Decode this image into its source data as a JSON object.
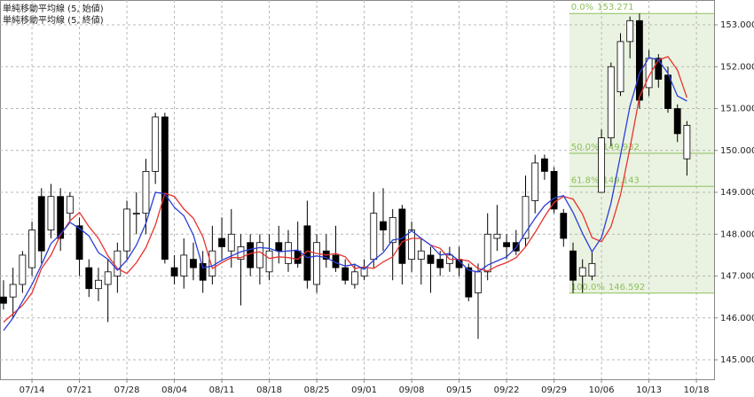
{
  "chart_data": {
    "type": "candlestick",
    "legend": [
      {
        "text": "単純移動平均線 (5, 始値)",
        "color": "#e8322d"
      },
      {
        "text": "単純移動平均線 (5, 終値)",
        "color": "#2b3fd6"
      }
    ],
    "xlim": [
      -0.37,
      74.86
    ],
    "xticks": [
      {
        "value": 3,
        "label": "07/14"
      },
      {
        "value": 8,
        "label": "07/21"
      },
      {
        "value": 13,
        "label": "07/28"
      },
      {
        "value": 18,
        "label": "08/04"
      },
      {
        "value": 23,
        "label": "08/11"
      },
      {
        "value": 28,
        "label": "08/18"
      },
      {
        "value": 33,
        "label": "08/25"
      },
      {
        "value": 38,
        "label": "09/01"
      },
      {
        "value": 43,
        "label": "09/08"
      },
      {
        "value": 48,
        "label": "09/15"
      },
      {
        "value": 53,
        "label": "09/22"
      },
      {
        "value": 58,
        "label": "09/29"
      },
      {
        "value": 63,
        "label": "10/06"
      },
      {
        "value": 68,
        "label": "10/13"
      },
      {
        "value": 73,
        "label": "10/18"
      }
    ],
    "ylim": [
      144.535,
      153.593
    ],
    "yticks": [
      {
        "value": 145,
        "label": "145.000"
      },
      {
        "value": 146,
        "label": "146.000"
      },
      {
        "value": 147,
        "label": "147.000"
      },
      {
        "value": 148,
        "label": "148.000"
      },
      {
        "value": 149,
        "label": "149.000"
      },
      {
        "value": 150,
        "label": "150.000"
      },
      {
        "value": 151,
        "label": "151.000"
      },
      {
        "value": 152,
        "label": "152.000"
      },
      {
        "value": 153,
        "label": "153.000"
      }
    ],
    "grid": true,
    "up_color": "#ffffff",
    "down_color": "#000000",
    "open": [
      146.5,
      146.5,
      146.8,
      147.2,
      148.9,
      148.1,
      148.9,
      148.5,
      148.2,
      147.2,
      146.7,
      146.8,
      147.0,
      147.6,
      148.5,
      148.5,
      149.5,
      150.8,
      147.2,
      147.0,
      147.4,
      147.3,
      147.0,
      147.9,
      147.6,
      147.4,
      147.8,
      147.2,
      147.1,
      147.8,
      147.3,
      147.6,
      148.2,
      146.8,
      147.6,
      147.5,
      147.2,
      146.8,
      147.0,
      147.4,
      148.3,
      147.8,
      148.6,
      147.4,
      147.4,
      147.5,
      147.4,
      147.3,
      147.4,
      147.2,
      146.6,
      147.1,
      147.9,
      147.8,
      147.8,
      147.9,
      148.8,
      149.8,
      149.5,
      148.5,
      147.6,
      147.0,
      147.0,
      149.0,
      150.3,
      151.4,
      152.6,
      153.1,
      151.5,
      152.2,
      151.8,
      151.0,
      149.8
    ],
    "high": [
      146.9,
      147.2,
      147.6,
      148.3,
      149.1,
      149.2,
      149.1,
      149.0,
      148.4,
      147.4,
      147.2,
      147.4,
      147.8,
      148.8,
      149.0,
      149.8,
      150.9,
      150.9,
      147.5,
      147.9,
      147.8,
      147.6,
      148.2,
      148.4,
      148.6,
      148.0,
      148.0,
      148.0,
      148.0,
      148.2,
      148.1,
      148.3,
      148.8,
      148.0,
      148.0,
      148.2,
      147.4,
      147.3,
      147.4,
      149.0,
      149.1,
      148.6,
      148.7,
      148.3,
      147.9,
      147.7,
      147.6,
      147.7,
      147.7,
      147.3,
      147.3,
      148.5,
      148.7,
      148.0,
      148.1,
      149.4,
      149.9,
      149.9,
      149.6,
      148.6,
      147.8,
      147.4,
      147.6,
      150.5,
      152.1,
      152.8,
      153.2,
      153.271,
      152.4,
      152.3,
      152.0,
      151.1,
      150.7
    ],
    "low": [
      146.2,
      146.0,
      146.6,
      147.0,
      147.3,
      147.9,
      147.6,
      148.3,
      147.0,
      146.5,
      146.4,
      145.9,
      146.6,
      147.4,
      148.0,
      148.0,
      149.2,
      147.3,
      146.8,
      146.7,
      146.9,
      146.6,
      146.8,
      147.4,
      147.2,
      146.3,
      147.0,
      146.8,
      146.9,
      147.3,
      147.1,
      147.2,
      146.7,
      146.6,
      147.2,
      147.1,
      146.8,
      146.7,
      146.9,
      147.2,
      147.6,
      146.9,
      146.8,
      147.1,
      146.8,
      146.6,
      147.0,
      147.1,
      147.0,
      146.4,
      145.5,
      146.9,
      147.6,
      147.4,
      147.5,
      147.7,
      148.5,
      149.3,
      148.5,
      147.7,
      146.592,
      146.6,
      146.9,
      149.0,
      150.1,
      151.3,
      152.2,
      151.0,
      151.3,
      151.5,
      150.9,
      150.2,
      149.4
    ],
    "close": [
      146.35,
      146.8,
      147.5,
      148.1,
      147.6,
      148.9,
      147.9,
      148.9,
      147.4,
      146.7,
      146.9,
      147.1,
      147.6,
      148.6,
      148.5,
      149.5,
      150.8,
      147.4,
      147.0,
      147.5,
      147.2,
      146.9,
      147.6,
      147.7,
      148.0,
      147.7,
      147.2,
      147.8,
      147.6,
      147.6,
      147.8,
      147.3,
      146.9,
      147.8,
      147.4,
      147.2,
      146.9,
      147.1,
      147.2,
      148.5,
      148.1,
      148.4,
      147.3,
      148.1,
      147.6,
      147.3,
      147.2,
      147.5,
      147.2,
      146.5,
      147.1,
      148.0,
      148.0,
      147.7,
      147.6,
      148.9,
      149.7,
      149.5,
      148.6,
      147.9,
      146.9,
      147.2,
      147.3,
      150.3,
      152.0,
      152.6,
      153.1,
      151.2,
      152.2,
      151.7,
      151.0,
      150.4,
      150.6
    ],
    "series": [
      {
        "name": "単純移動平均線 (5, 始値)",
        "color": "#e8322d",
        "values": [
          145.9,
          146.1,
          146.3,
          146.6,
          147.18,
          147.5,
          147.98,
          148.32,
          148.52,
          148.18,
          147.9,
          147.48,
          147.18,
          147.06,
          147.32,
          147.68,
          148.22,
          148.98,
          148.9,
          148.6,
          148.38,
          147.94,
          147.18,
          147.32,
          147.44,
          147.44,
          147.54,
          147.58,
          147.42,
          147.46,
          147.44,
          147.4,
          147.6,
          147.54,
          147.5,
          147.54,
          147.46,
          147.18,
          147.22,
          147.18,
          147.34,
          147.46,
          147.82,
          147.9,
          147.9,
          147.74,
          147.66,
          147.4,
          147.4,
          147.36,
          147.18,
          147.12,
          147.24,
          147.32,
          147.44,
          147.7,
          148.04,
          148.42,
          148.76,
          148.9,
          148.84,
          148.48,
          147.92,
          147.82,
          148.18,
          148.94,
          150.06,
          151.28,
          151.78,
          152.16,
          152.24,
          151.92,
          151.26
        ]
      },
      {
        "name": "単純移動平均線 (5, 終値)",
        "color": "#2b3fd6",
        "values": [
          145.7,
          146.0,
          146.4,
          146.8,
          147.27,
          147.78,
          148.0,
          148.28,
          148.14,
          147.96,
          147.56,
          147.4,
          147.14,
          147.38,
          147.74,
          148.26,
          149.0,
          148.96,
          148.64,
          148.44,
          147.98,
          147.2,
          147.24,
          147.38,
          147.48,
          147.58,
          147.64,
          147.68,
          147.66,
          147.58,
          147.6,
          147.62,
          147.44,
          147.48,
          147.44,
          147.32,
          147.24,
          147.28,
          147.16,
          147.38,
          147.56,
          147.86,
          147.9,
          148.08,
          147.9,
          147.74,
          147.5,
          147.54,
          147.36,
          147.14,
          147.1,
          147.26,
          147.36,
          147.46,
          147.68,
          148.04,
          148.38,
          148.68,
          148.86,
          148.92,
          148.52,
          148.02,
          147.58,
          147.92,
          148.74,
          149.88,
          151.06,
          151.84,
          152.22,
          152.16,
          151.84,
          151.3,
          151.18
        ]
      }
    ],
    "fibonacci": {
      "color": "#8cbf5a",
      "levels": [
        {
          "label": "0.0%",
          "value": 153.271
        },
        {
          "label": "50.0%",
          "value": 149.932
        },
        {
          "label": "61.8%",
          "value": 149.143
        },
        {
          "label": "100.0%",
          "value": 146.592
        }
      ]
    }
  }
}
